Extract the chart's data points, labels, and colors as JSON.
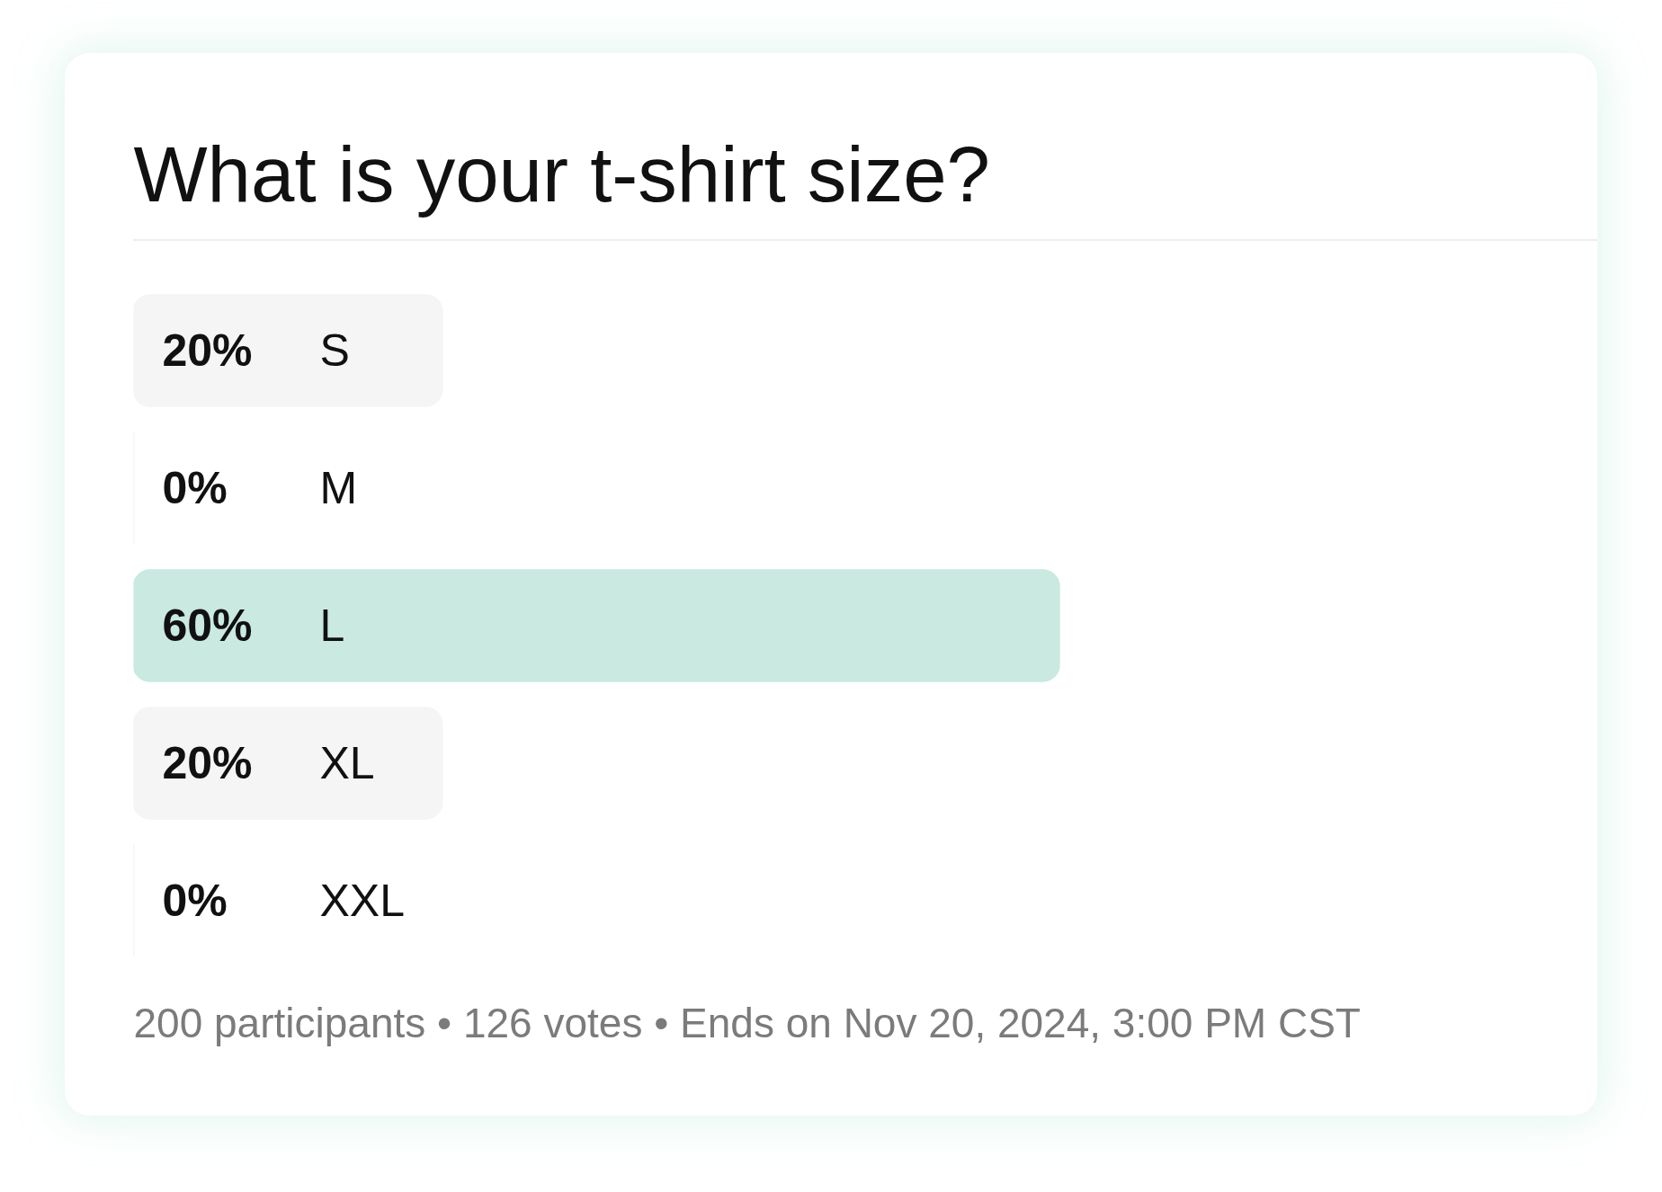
{
  "chart_data": {
    "type": "bar",
    "orientation": "horizontal",
    "title": "What is your t-shirt size?",
    "categories": [
      "S",
      "M",
      "L",
      "XL",
      "XXL"
    ],
    "values": [
      20,
      0,
      60,
      20,
      0
    ],
    "value_labels": [
      "20%",
      "0%",
      "60%",
      "20%",
      "0%"
    ],
    "colors": [
      "#f5f5f5",
      "#f0f0f0",
      "#c9e9e1",
      "#f5f5f5",
      "#f0f0f0"
    ],
    "tick_labels": false,
    "annotations": [
      "200 participants • 126 votes • Ends on Nov 20, 2024, 3:00 PM CST"
    ]
  }
}
